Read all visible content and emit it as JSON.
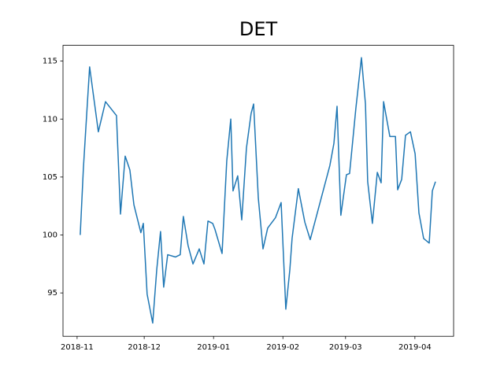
{
  "chart_data": {
    "type": "line",
    "title": "DET",
    "x": [
      1.4,
      2.8,
      3.9,
      5.6,
      9.5,
      12.7,
      17.6,
      19.4,
      21.5,
      23.6,
      25.4,
      28.5,
      29.6,
      31.3,
      33.8,
      35.6,
      37.3,
      38.7,
      40.5,
      44.0,
      46.1,
      47.5,
      49.6,
      51.8,
      54.6,
      56.7,
      58.5,
      60.6,
      61.6,
      64.8,
      66.9,
      68.7,
      69.7,
      71.8,
      73.6,
      75.7,
      77.8,
      78.9,
      81.0,
      83.1,
      85.2,
      88.7,
      91.2,
      93.3,
      95.1,
      96.1,
      98.9,
      101.8,
      104.2,
      113.0,
      114.8,
      116.2,
      117.9,
      120.4,
      121.8,
      124.6,
      127.1,
      128.9,
      129.9,
      132.0,
      134.2,
      135.9,
      137.0,
      139.8,
      142.3,
      143.3,
      145.1,
      146.8,
      149.0,
      151.1,
      152.8,
      154.9,
      157.4,
      158.8,
      160.2
    ],
    "series": [
      {
        "color": "#1f77b4",
        "values": [
          100.0,
          105.7,
          109.2,
          114.5,
          108.9,
          111.5,
          110.3,
          101.8,
          106.8,
          105.6,
          102.6,
          100.2,
          101.0,
          94.9,
          92.4,
          97.0,
          100.3,
          95.5,
          98.3,
          98.1,
          98.3,
          101.6,
          99.1,
          97.5,
          98.8,
          97.5,
          101.2,
          101.0,
          100.5,
          98.4,
          106.4,
          110.0,
          103.8,
          105.1,
          101.3,
          107.5,
          110.5,
          111.3,
          103.2,
          98.8,
          100.6,
          101.5,
          102.8,
          93.6,
          97.0,
          99.7,
          104.0,
          101.1,
          99.6,
          106.0,
          107.9,
          111.1,
          101.7,
          105.2,
          105.3,
          110.9,
          115.3,
          111.3,
          104.6,
          101.0,
          105.4,
          104.5,
          111.5,
          108.5,
          108.5,
          103.9,
          104.8,
          108.6,
          108.9,
          107.0,
          101.9,
          99.7,
          99.3,
          103.8,
          104.6
        ]
      }
    ],
    "xlim": [
      -6.3,
      168.3
    ],
    "xticks": [
      {
        "value": 0,
        "label": "2018-11"
      },
      {
        "value": 30,
        "label": "2018-12"
      },
      {
        "value": 61,
        "label": "2019-01"
      },
      {
        "value": 92,
        "label": "2019-02"
      },
      {
        "value": 120,
        "label": "2019-03"
      },
      {
        "value": 151,
        "label": "2019-04"
      }
    ],
    "ylim": [
      91.26,
      116.36
    ],
    "yticks": [
      95,
      100,
      105,
      110,
      115
    ]
  }
}
